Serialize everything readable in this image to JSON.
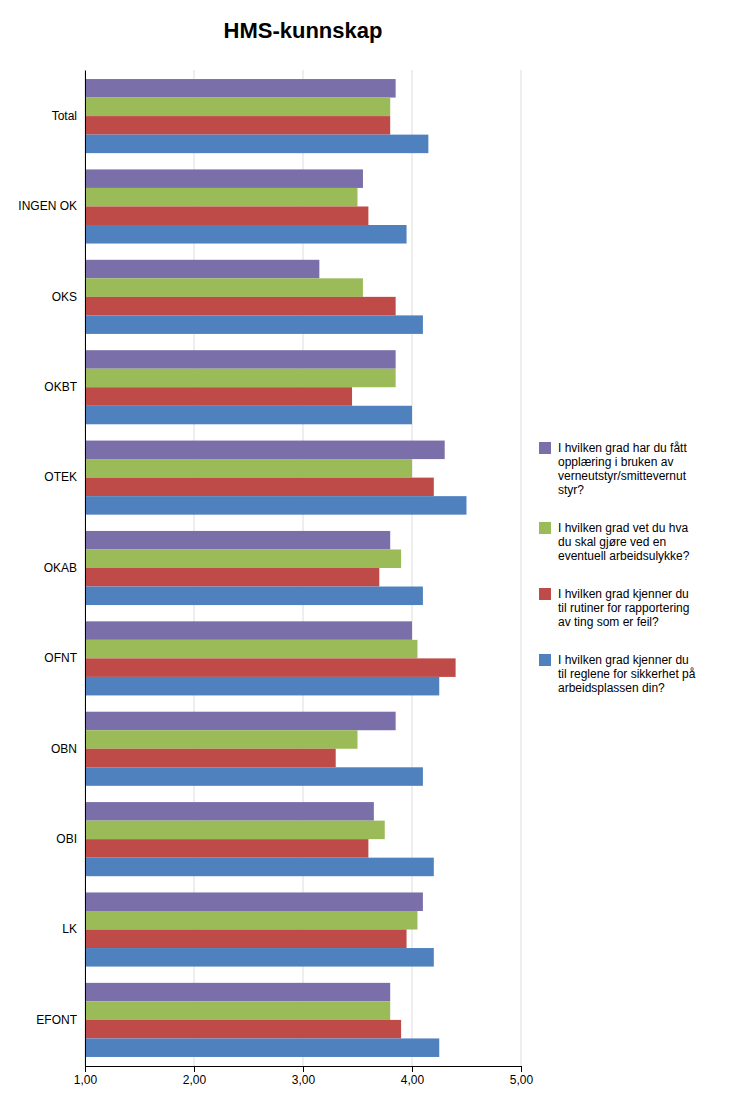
{
  "chart_data": {
    "type": "bar",
    "orientation": "horizontal",
    "title": "HMS-kunnskap",
    "categories": [
      "EFONT",
      "LK",
      "OBI",
      "OBN",
      "OFNT",
      "OKAB",
      "OTEK",
      "OKBT",
      "OKS",
      "INGEN OK",
      "Total"
    ],
    "series": [
      {
        "name": "I hvilken grad har du fått\nopplæring i bruken av\nverneutstyr/smittevernut\nstyr?",
        "color": "#7B6FAA",
        "values": [
          3.8,
          4.1,
          3.65,
          3.85,
          4.0,
          3.8,
          4.3,
          3.85,
          3.15,
          3.55,
          3.85
        ]
      },
      {
        "name": "I hvilken grad vet du hva\ndu skal gjøre ved en\neventuell arbeidsulykke?",
        "color": "#9BBB59",
        "values": [
          3.8,
          4.05,
          3.75,
          3.5,
          4.05,
          3.9,
          4.0,
          3.85,
          3.55,
          3.5,
          3.8
        ]
      },
      {
        "name": "I hvilken grad kjenner du\ntil rutiner for rapportering\nav ting som er feil?",
        "color": "#BE4B48",
        "values": [
          3.9,
          3.95,
          3.6,
          3.3,
          4.4,
          3.7,
          4.2,
          3.45,
          3.85,
          3.6,
          3.8
        ]
      },
      {
        "name": "I hvilken grad kjenner du\ntil reglene for sikkerhet på\narbeidsplassen din?",
        "color": "#4E81BD",
        "values": [
          4.25,
          4.2,
          4.2,
          4.1,
          4.25,
          4.1,
          4.5,
          4.0,
          4.1,
          3.95,
          4.15
        ]
      }
    ],
    "xlim": [
      1,
      5
    ],
    "xticks": [
      {
        "value": 1,
        "label": "1,00"
      },
      {
        "value": 2,
        "label": "2,00"
      },
      {
        "value": 3,
        "label": "3,00"
      },
      {
        "value": 4,
        "label": "4,00"
      },
      {
        "value": 5,
        "label": "5,00"
      }
    ],
    "grid": true,
    "legend": "right"
  }
}
